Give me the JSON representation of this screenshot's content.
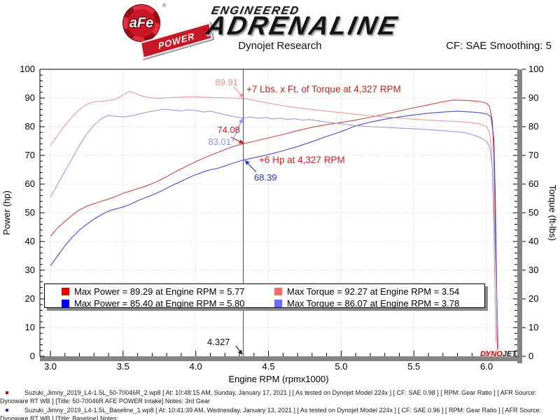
{
  "header": {
    "badge_brand": "aFe",
    "badge_sub": "POWER",
    "badge_reg": "®",
    "logo_top": "ENGINEERED",
    "logo_main": "ADRENALINE",
    "title": "Dynojet Research",
    "cf_label": "CF: SAE Smoothing: 5"
  },
  "chart_data": {
    "type": "line",
    "title": "Dynojet Research",
    "xlabel": "Engine RPM (rpmx1000)",
    "ylabel_left": "Power (hp)",
    "ylabel_right": "Torque (ft-lbs)",
    "xlim": [
      2.93,
      6.21
    ],
    "ylim": [
      0,
      100
    ],
    "x_ticks": [
      3.0,
      3.5,
      4.0,
      4.5,
      5.0,
      5.5,
      6.0
    ],
    "y_ticks": [
      0,
      10,
      20,
      30,
      40,
      50,
      60,
      70,
      80,
      90,
      100
    ],
    "grid": true,
    "legend_position": "bottom-inside",
    "cursor": {
      "rpm": 4.327,
      "power_afe": 74.08,
      "power_base": 68.39,
      "torque_afe": 89.91,
      "torque_base": 83.01
    },
    "legend": [
      {
        "color": "#ee0000",
        "label": "Max Power = 89.29 at Engine RPM = 5.77"
      },
      {
        "color": "#0000ee",
        "label": "Max Power = 85.40 at Engine RPM = 5.80"
      },
      {
        "color": "#f56c6c",
        "label": "Max Torque = 92.27 at Engine RPM = 3.54"
      },
      {
        "color": "#6c6cf5",
        "label": "Max Torque = 86.07 at Engine RPM = 3.78"
      }
    ],
    "series": [
      {
        "name": "power-afe",
        "axis": "left",
        "color": "#c94a4a",
        "points": [
          [
            3.0,
            41.8
          ],
          [
            3.05,
            44.8
          ],
          [
            3.1,
            47.0
          ],
          [
            3.15,
            49.2
          ],
          [
            3.2,
            51.0
          ],
          [
            3.25,
            52.3
          ],
          [
            3.3,
            53.2
          ],
          [
            3.35,
            54.0
          ],
          [
            3.4,
            54.8
          ],
          [
            3.45,
            55.7
          ],
          [
            3.5,
            56.8
          ],
          [
            3.55,
            57.6
          ],
          [
            3.6,
            58.4
          ],
          [
            3.65,
            59.2
          ],
          [
            3.7,
            60.2
          ],
          [
            3.75,
            61.3
          ],
          [
            3.8,
            62.6
          ],
          [
            3.85,
            64.0
          ],
          [
            3.9,
            65.3
          ],
          [
            3.95,
            66.6
          ],
          [
            4.0,
            67.8
          ],
          [
            4.05,
            69.0
          ],
          [
            4.1,
            70.0
          ],
          [
            4.15,
            71.0
          ],
          [
            4.2,
            72.0
          ],
          [
            4.25,
            73.0
          ],
          [
            4.327,
            74.08
          ],
          [
            4.4,
            74.9
          ],
          [
            4.5,
            76.1
          ],
          [
            4.6,
            77.3
          ],
          [
            4.7,
            78.6
          ],
          [
            4.8,
            79.8
          ],
          [
            4.9,
            80.7
          ],
          [
            5.0,
            81.5
          ],
          [
            5.1,
            82.3
          ],
          [
            5.2,
            83.3
          ],
          [
            5.3,
            84.4
          ],
          [
            5.4,
            85.5
          ],
          [
            5.5,
            86.6
          ],
          [
            5.6,
            87.6
          ],
          [
            5.7,
            88.7
          ],
          [
            5.77,
            89.29
          ],
          [
            5.85,
            89.2
          ],
          [
            5.9,
            89.0
          ],
          [
            5.95,
            88.8
          ],
          [
            6.0,
            88.2
          ],
          [
            6.02,
            87.0
          ],
          [
            6.04,
            82.0
          ],
          [
            6.05,
            70.0
          ],
          [
            6.06,
            45.0
          ],
          [
            6.07,
            15.0
          ],
          [
            6.075,
            2.0
          ]
        ]
      },
      {
        "name": "power-base",
        "axis": "left",
        "color": "#4a4ac9",
        "points": [
          [
            3.0,
            31.5
          ],
          [
            3.05,
            35.0
          ],
          [
            3.1,
            38.5
          ],
          [
            3.15,
            41.5
          ],
          [
            3.2,
            44.0
          ],
          [
            3.25,
            46.0
          ],
          [
            3.3,
            47.8
          ],
          [
            3.35,
            49.3
          ],
          [
            3.4,
            50.6
          ],
          [
            3.45,
            51.4
          ],
          [
            3.5,
            52.0
          ],
          [
            3.55,
            53.0
          ],
          [
            3.6,
            54.2
          ],
          [
            3.65,
            55.2
          ],
          [
            3.7,
            56.2
          ],
          [
            3.75,
            57.3
          ],
          [
            3.8,
            58.6
          ],
          [
            3.85,
            59.8
          ],
          [
            3.9,
            61.0
          ],
          [
            3.95,
            62.2
          ],
          [
            4.0,
            63.3
          ],
          [
            4.05,
            64.2
          ],
          [
            4.1,
            65.0
          ],
          [
            4.15,
            65.5
          ],
          [
            4.2,
            66.3
          ],
          [
            4.25,
            67.2
          ],
          [
            4.327,
            68.39
          ],
          [
            4.4,
            69.2
          ],
          [
            4.5,
            70.3
          ],
          [
            4.6,
            71.6
          ],
          [
            4.7,
            73.1
          ],
          [
            4.8,
            74.8
          ],
          [
            4.9,
            76.6
          ],
          [
            5.0,
            78.3
          ],
          [
            5.05,
            79.3
          ],
          [
            5.1,
            80.3
          ],
          [
            5.2,
            81.6
          ],
          [
            5.3,
            82.6
          ],
          [
            5.4,
            83.4
          ],
          [
            5.5,
            84.1
          ],
          [
            5.6,
            84.7
          ],
          [
            5.7,
            85.1
          ],
          [
            5.8,
            85.4
          ],
          [
            5.9,
            85.1
          ],
          [
            5.95,
            84.9
          ],
          [
            6.0,
            84.5
          ],
          [
            6.03,
            83.5
          ],
          [
            6.05,
            76.0
          ],
          [
            6.06,
            55.0
          ],
          [
            6.07,
            22.0
          ],
          [
            6.08,
            3.0
          ]
        ]
      },
      {
        "name": "torque-afe",
        "axis": "right",
        "color": "#e49a9a",
        "points": [
          [
            3.0,
            73.5
          ],
          [
            3.05,
            77.0
          ],
          [
            3.1,
            80.5
          ],
          [
            3.15,
            83.5
          ],
          [
            3.2,
            86.0
          ],
          [
            3.25,
            87.8
          ],
          [
            3.3,
            88.6
          ],
          [
            3.35,
            88.9
          ],
          [
            3.4,
            89.1
          ],
          [
            3.45,
            89.6
          ],
          [
            3.5,
            91.0
          ],
          [
            3.54,
            92.27
          ],
          [
            3.58,
            91.7
          ],
          [
            3.62,
            90.8
          ],
          [
            3.68,
            90.1
          ],
          [
            3.75,
            89.9
          ],
          [
            3.85,
            90.2
          ],
          [
            3.95,
            90.4
          ],
          [
            4.05,
            90.3
          ],
          [
            4.15,
            90.1
          ],
          [
            4.25,
            90.0
          ],
          [
            4.327,
            89.91
          ],
          [
            4.4,
            89.2
          ],
          [
            4.5,
            88.2
          ],
          [
            4.6,
            87.3
          ],
          [
            4.7,
            86.6
          ],
          [
            4.8,
            86.0
          ],
          [
            4.9,
            85.4
          ],
          [
            5.0,
            84.9
          ],
          [
            5.1,
            84.3
          ],
          [
            5.2,
            83.9
          ],
          [
            5.3,
            83.4
          ],
          [
            5.4,
            83.0
          ],
          [
            5.5,
            82.6
          ],
          [
            5.6,
            82.3
          ],
          [
            5.7,
            82.0
          ],
          [
            5.8,
            81.8
          ],
          [
            5.9,
            81.4
          ],
          [
            5.95,
            81.0
          ],
          [
            6.0,
            80.0
          ],
          [
            6.02,
            78.0
          ],
          [
            6.035,
            72.0
          ],
          [
            6.045,
            55.0
          ],
          [
            6.055,
            30.0
          ],
          [
            6.065,
            5.0
          ]
        ]
      },
      {
        "name": "torque-base",
        "axis": "right",
        "color": "#9a9ae4",
        "points": [
          [
            3.0,
            55.5
          ],
          [
            3.05,
            60.0
          ],
          [
            3.1,
            64.5
          ],
          [
            3.15,
            69.0
          ],
          [
            3.2,
            73.5
          ],
          [
            3.25,
            77.5
          ],
          [
            3.3,
            80.5
          ],
          [
            3.35,
            82.8
          ],
          [
            3.4,
            83.9
          ],
          [
            3.45,
            83.6
          ],
          [
            3.5,
            83.4
          ],
          [
            3.55,
            83.7
          ],
          [
            3.6,
            84.3
          ],
          [
            3.65,
            84.9
          ],
          [
            3.7,
            85.4
          ],
          [
            3.78,
            86.07
          ],
          [
            3.85,
            85.7
          ],
          [
            3.9,
            85.5
          ],
          [
            3.95,
            85.9
          ],
          [
            4.0,
            85.6
          ],
          [
            4.05,
            85.1
          ],
          [
            4.1,
            85.4
          ],
          [
            4.15,
            84.8
          ],
          [
            4.2,
            84.2
          ],
          [
            4.25,
            83.6
          ],
          [
            4.327,
            83.01
          ],
          [
            4.38,
            83.4
          ],
          [
            4.43,
            82.9
          ],
          [
            4.48,
            83.2
          ],
          [
            4.53,
            82.7
          ],
          [
            4.58,
            83.0
          ],
          [
            4.63,
            82.5
          ],
          [
            4.68,
            82.8
          ],
          [
            4.73,
            82.3
          ],
          [
            4.78,
            82.5
          ],
          [
            4.85,
            82.0
          ],
          [
            4.9,
            81.6
          ],
          [
            5.0,
            81.0
          ],
          [
            5.1,
            80.4
          ],
          [
            5.2,
            80.0
          ],
          [
            5.3,
            79.8
          ],
          [
            5.4,
            79.5
          ],
          [
            5.5,
            79.3
          ],
          [
            5.6,
            79.0
          ],
          [
            5.7,
            78.6
          ],
          [
            5.8,
            78.2
          ],
          [
            5.85,
            77.9
          ],
          [
            5.9,
            77.3
          ],
          [
            5.95,
            76.4
          ],
          [
            6.0,
            75.0
          ],
          [
            6.02,
            73.0
          ],
          [
            6.04,
            66.0
          ],
          [
            6.055,
            45.0
          ],
          [
            6.07,
            18.0
          ],
          [
            6.08,
            3.0
          ]
        ]
      }
    ]
  },
  "annotations": {
    "torque_gain": "+7 Lbs. x Ft. of Torque at 4,327 RPM",
    "power_gain": "+6 Hp at 4,327 RPM",
    "torque_afe_value": "89.91",
    "torque_base_value": "83.01",
    "power_afe_value": "74.08",
    "power_base_value": "68.39",
    "cursor_value": "4.327"
  },
  "colors": {
    "annotation_red": "#c32222",
    "annotation_blue": "#2838c8",
    "annotation_pink": "#e89494",
    "annotation_lightblue": "#9494e8",
    "axis_gray": "#848484",
    "grid": "#cfcfcf",
    "cursor": "#4a4a4a"
  },
  "dynojet_logo": {
    "part1": "DYNO",
    "part2": "JET"
  },
  "footer": {
    "runs": [
      {
        "bullet_color": "#cc0000",
        "text": "Suzuki_Jimny_2019_L4-1.5L_50-70046R_2.wp8 [ At: 10:48:15 AM, Sunday, January 17, 2021 ] [ As tested on Dynojet Model 224x ] [ CF: SAE 0.98 ] [ RPM: Gear Ratio ] [ AFR Source: Dynoware RT WB ] [Title: 50-70046R AFE POWER Intake]  Notes: 3rd Gear"
      },
      {
        "bullet_color": "#2222cc",
        "text": "Suzuki_Jimny_2019_L4-1.5L_Baseline_1.wp8 [ At: 10:41:39 AM, Wednesday, January 13, 2021 ] [ As tested on Dynojet Model 224x ] [ CF: SAE 0.96 ] [ RPM: Gear Ratio ] [ AFR Source: Dynoware RT WB ] [Title: Baseline]  Notes:"
      }
    ]
  }
}
